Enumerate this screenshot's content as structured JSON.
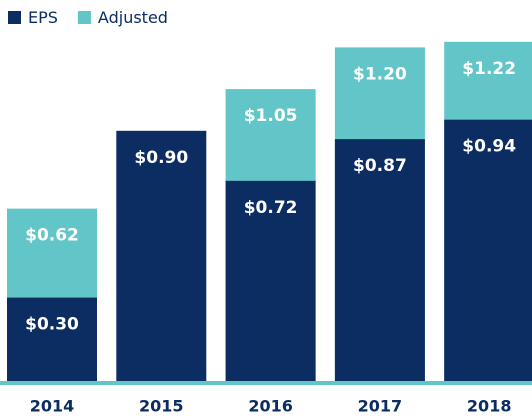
{
  "chart_data": {
    "type": "bar",
    "categories": [
      "2014",
      "2015",
      "2016",
      "2017",
      "2018"
    ],
    "series": [
      {
        "name": "EPS",
        "color": "#0b2d62",
        "values": [
          0.3,
          0.9,
          0.72,
          0.87,
          0.94
        ],
        "value_labels": [
          "$0.30",
          "$0.90",
          "$0.72",
          "$0.87",
          "$0.94"
        ]
      },
      {
        "name": "Adjusted",
        "color": "#62c5c7",
        "values": [
          0.62,
          null,
          1.05,
          1.2,
          1.22
        ],
        "value_labels": [
          "$0.62",
          null,
          "$1.05",
          "$1.20",
          "$1.22"
        ]
      }
    ],
    "legend": "top-left"
  }
}
